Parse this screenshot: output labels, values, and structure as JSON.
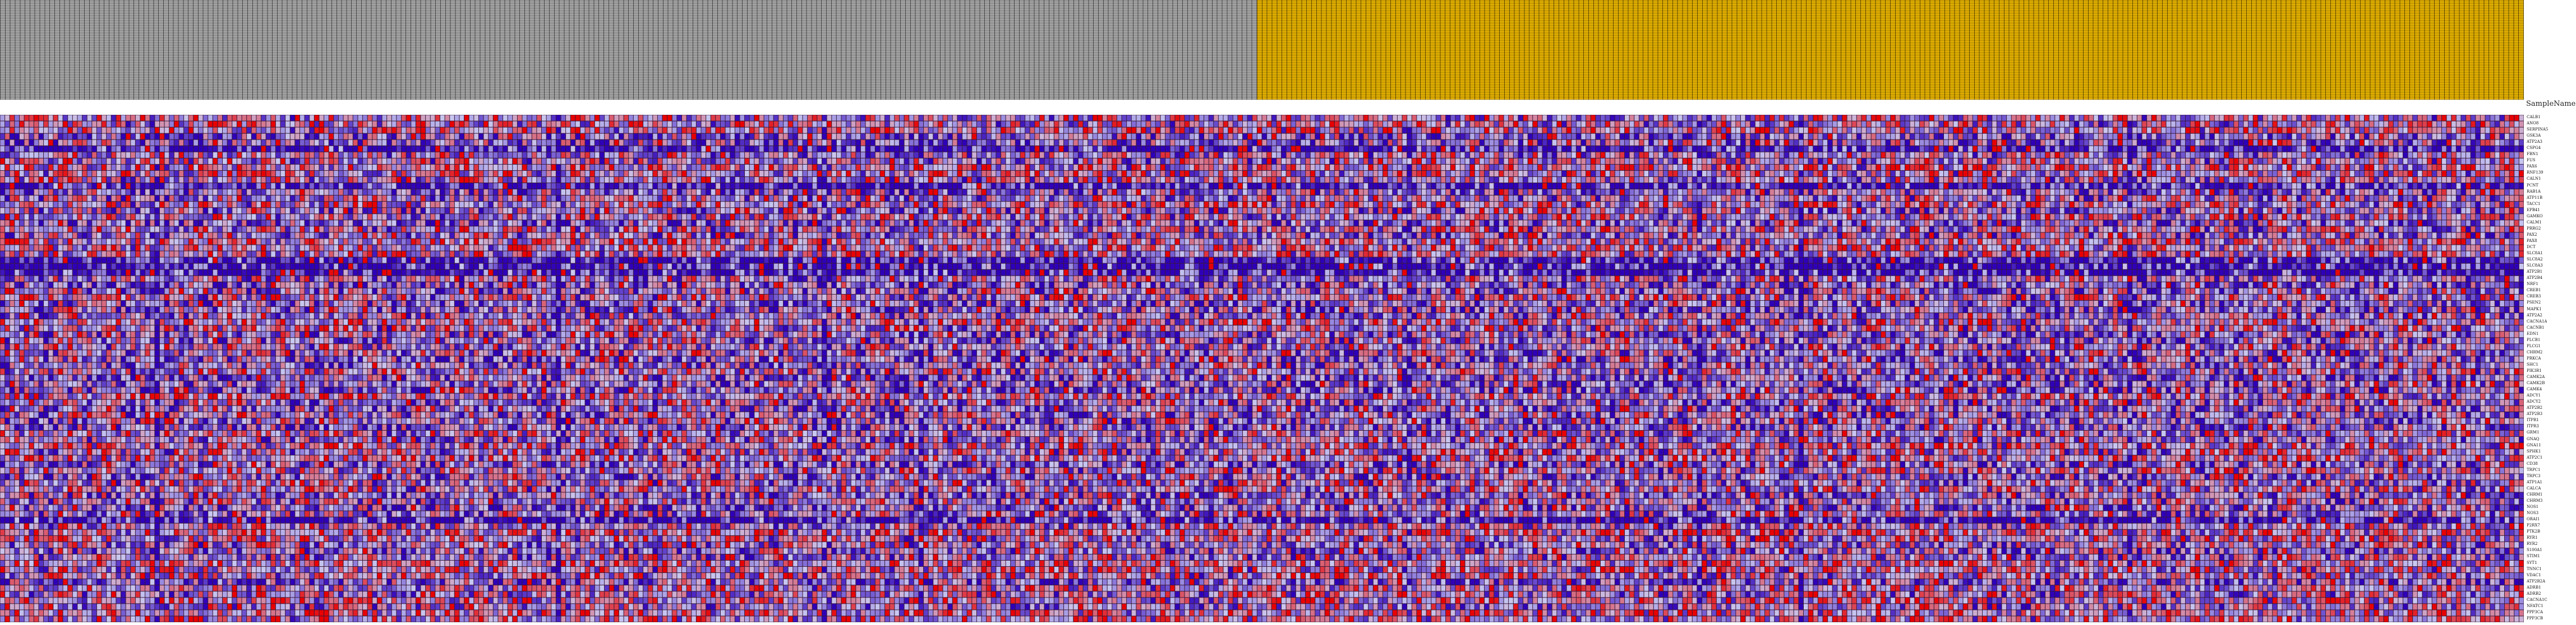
{
  "sample_header": {
    "label": "SampleName",
    "groups": [
      {
        "columns": 260,
        "color": "#a9a9a9"
      },
      {
        "columns": 262,
        "color": "#e8b400"
      }
    ]
  },
  "chart_data": {
    "type": "heatmap",
    "n_rows": 82,
    "n_cols": 522,
    "color_scale": {
      "low": "#2e00b8",
      "mid": "#c8c8f0",
      "high": "#e80000"
    },
    "row_labels": [
      "CALB1",
      "ANO8",
      "SERPINA5",
      "GSK3A",
      "ATP2A3",
      "CSPG4",
      "FBN1",
      "FUS",
      "PAX6",
      "RNF139",
      "CALN1",
      "PCNT",
      "RAB1A",
      "ATP11B",
      "TACC1",
      "EPB41",
      "GAMKO",
      "CALM1",
      "PRRG2",
      "PAX2",
      "PAX8",
      "DCT",
      "SLC8A1",
      "SLC8A2",
      "SLC8A3",
      "ATP2B1",
      "ATP2B4",
      "NRF1",
      "CREB1",
      "CREB3",
      "PSEN2",
      "MAPK1",
      "ATP2A2",
      "CACNA1A",
      "CACNB1",
      "EDN1",
      "PLCB1",
      "PLCG1",
      "CHRM2",
      "PRKCA",
      "SHC1",
      "PIK3R1",
      "CAMK2A",
      "CAMK2B",
      "CAMK4",
      "ADCY1",
      "ADCY2",
      "ATP2B2",
      "ATP2B3",
      "ITPR1",
      "ITPR3",
      "GRM1",
      "GNAQ",
      "GNA11",
      "SPHK1",
      "ATP2C1",
      "CD38",
      "TRPC1",
      "TRPC3",
      "ATP1A1",
      "CALCA",
      "CHRM1",
      "CHRM3",
      "NOS1",
      "NOS3",
      "ORAI1",
      "P2RX7",
      "PTK2B",
      "RYR1",
      "RYR2",
      "S100A1",
      "STIM1",
      "SYT1",
      "TNNC1",
      "VDAC1",
      "ATP2B2A",
      "ADRB1",
      "ADRB2",
      "CACNA1C",
      "NFATC1",
      "PPP3CA",
      "PPP3CB"
    ]
  }
}
